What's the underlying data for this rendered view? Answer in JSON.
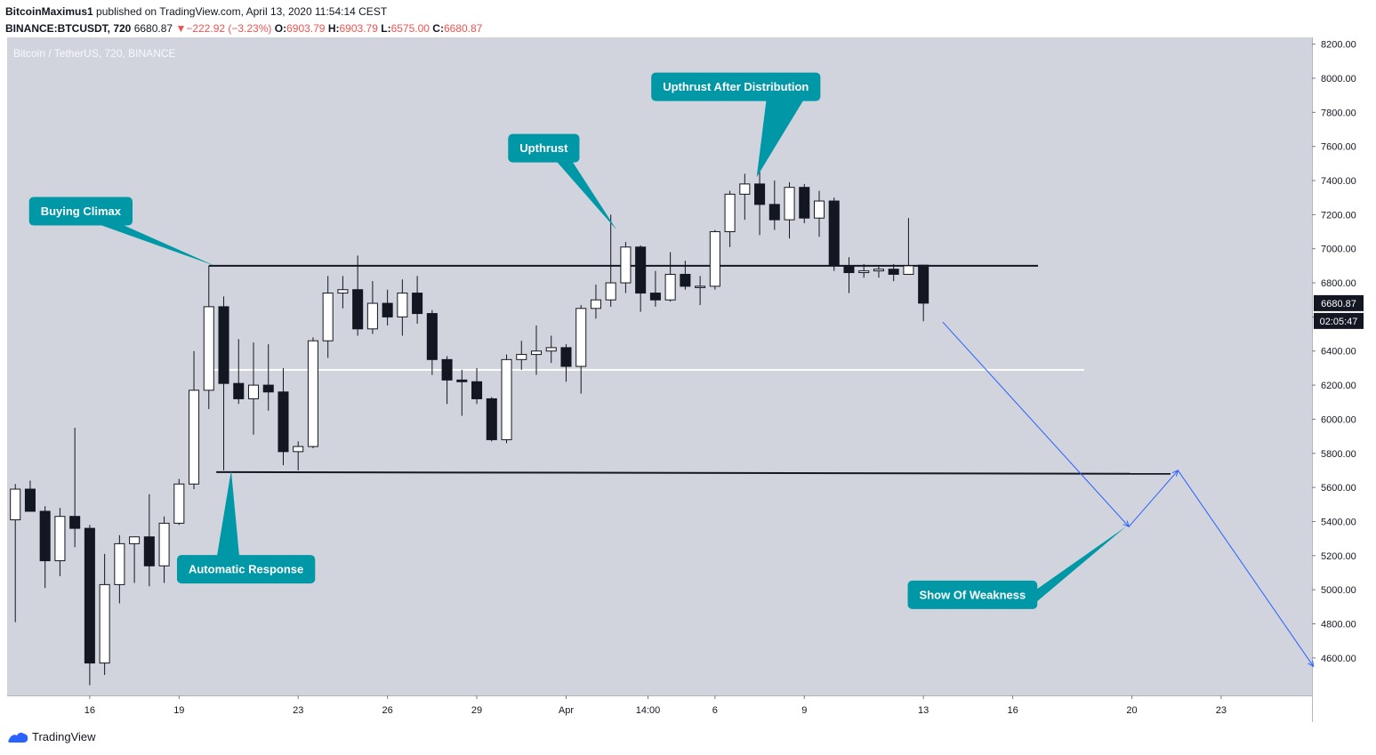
{
  "header": {
    "author": "BitcoinMaximus1",
    "published": "published on TradingView.com, April 13, 2020 11:54:14 CEST",
    "symbol": "BINANCE:BTCUSDT, 720",
    "last": "6680.87",
    "change": "−222.92 (−3.23%)",
    "o_label": "O:",
    "o": "6903.79",
    "h_label": "H:",
    "h": "6903.79",
    "l_label": "L:",
    "l": "6575.00",
    "c_label": "C:",
    "c": "6680.87"
  },
  "footer": {
    "brand": "TradingView"
  },
  "colors": {
    "plot_bg": "#d1d4dc",
    "bull_body": "#ffffff",
    "bear_body": "#131722",
    "callout": "#0097a7",
    "projection": "#2962ff",
    "last_price_bg": "#131722"
  },
  "chart_data": {
    "type": "candlestick",
    "title": "Bitcoin / TetherUS, 720, BINANCE",
    "y_range": [
      4380,
      8240
    ],
    "x_range": [
      -0.55,
      87.1
    ],
    "y_ticks": [
      4600,
      4800,
      5000,
      5200,
      5400,
      5600,
      5800,
      6000,
      6200,
      6400,
      6600,
      6800,
      7000,
      7200,
      7400,
      7600,
      7800,
      8000,
      8200
    ],
    "y_tick_labels": [
      "4600.00",
      "4800.00",
      "5000.00",
      "5200.00",
      "5400.00",
      "5600.00",
      "5800.00",
      "6000.00",
      "6200.00",
      "6400.00",
      "6600.00",
      "6800.00",
      "7000.00",
      "7200.00",
      "7400.00",
      "7600.00",
      "7800.00",
      "8000.00",
      "8200.00"
    ],
    "x_ticks": [
      {
        "i": 5,
        "label": "16"
      },
      {
        "i": 11,
        "label": "19"
      },
      {
        "i": 19,
        "label": "23"
      },
      {
        "i": 25,
        "label": "26"
      },
      {
        "i": 31,
        "label": "29"
      },
      {
        "i": 37,
        "label": "Apr"
      },
      {
        "i": 42.5,
        "label": "14:00"
      },
      {
        "i": 47,
        "label": "6"
      },
      {
        "i": 53,
        "label": "9"
      },
      {
        "i": 61,
        "label": "13"
      },
      {
        "i": 67,
        "label": "16"
      },
      {
        "i": 75,
        "label": "20"
      },
      {
        "i": 81,
        "label": "23"
      }
    ],
    "candles": [
      {
        "o": 5410,
        "h": 5620,
        "l": 4810,
        "c": 5590
      },
      {
        "o": 5590,
        "h": 5640,
        "l": 5490,
        "c": 5460
      },
      {
        "o": 5460,
        "h": 5490,
        "l": 5010,
        "c": 5170
      },
      {
        "o": 5170,
        "h": 5480,
        "l": 5080,
        "c": 5430
      },
      {
        "o": 5430,
        "h": 5950,
        "l": 5250,
        "c": 5360
      },
      {
        "o": 5360,
        "h": 5380,
        "l": 4440,
        "c": 4570
      },
      {
        "o": 4570,
        "h": 5210,
        "l": 4500,
        "c": 5030
      },
      {
        "o": 5030,
        "h": 5320,
        "l": 4920,
        "c": 5270
      },
      {
        "o": 5270,
        "h": 5310,
        "l": 5040,
        "c": 5310
      },
      {
        "o": 5310,
        "h": 5560,
        "l": 5020,
        "c": 5140
      },
      {
        "o": 5140,
        "h": 5430,
        "l": 5040,
        "c": 5390
      },
      {
        "o": 5390,
        "h": 5650,
        "l": 5380,
        "c": 5620
      },
      {
        "o": 5620,
        "h": 6400,
        "l": 5590,
        "c": 6170
      },
      {
        "o": 6170,
        "h": 6900,
        "l": 6060,
        "c": 6660
      },
      {
        "o": 6660,
        "h": 6720,
        "l": 5700,
        "c": 6210
      },
      {
        "o": 6210,
        "h": 6470,
        "l": 6090,
        "c": 6120
      },
      {
        "o": 6120,
        "h": 6450,
        "l": 5910,
        "c": 6200
      },
      {
        "o": 6200,
        "h": 6440,
        "l": 6050,
        "c": 6160
      },
      {
        "o": 6160,
        "h": 6300,
        "l": 5730,
        "c": 5810
      },
      {
        "o": 5810,
        "h": 5870,
        "l": 5700,
        "c": 5840
      },
      {
        "o": 5840,
        "h": 6480,
        "l": 5830,
        "c": 6460
      },
      {
        "o": 6460,
        "h": 6840,
        "l": 6360,
        "c": 6740
      },
      {
        "o": 6740,
        "h": 6840,
        "l": 6650,
        "c": 6760
      },
      {
        "o": 6760,
        "h": 6960,
        "l": 6490,
        "c": 6530
      },
      {
        "o": 6530,
        "h": 6810,
        "l": 6500,
        "c": 6680
      },
      {
        "o": 6680,
        "h": 6760,
        "l": 6550,
        "c": 6600
      },
      {
        "o": 6600,
        "h": 6820,
        "l": 6490,
        "c": 6740
      },
      {
        "o": 6740,
        "h": 6840,
        "l": 6560,
        "c": 6620
      },
      {
        "o": 6620,
        "h": 6640,
        "l": 6260,
        "c": 6350
      },
      {
        "o": 6350,
        "h": 6370,
        "l": 6090,
        "c": 6230
      },
      {
        "o": 6230,
        "h": 6290,
        "l": 6020,
        "c": 6220
      },
      {
        "o": 6220,
        "h": 6300,
        "l": 6090,
        "c": 6120
      },
      {
        "o": 6120,
        "h": 6130,
        "l": 5870,
        "c": 5880
      },
      {
        "o": 5880,
        "h": 6380,
        "l": 5860,
        "c": 6350
      },
      {
        "o": 6350,
        "h": 6460,
        "l": 6290,
        "c": 6380
      },
      {
        "o": 6380,
        "h": 6550,
        "l": 6260,
        "c": 6400
      },
      {
        "o": 6400,
        "h": 6490,
        "l": 6330,
        "c": 6420
      },
      {
        "o": 6420,
        "h": 6440,
        "l": 6220,
        "c": 6310
      },
      {
        "o": 6310,
        "h": 6670,
        "l": 6150,
        "c": 6650
      },
      {
        "o": 6650,
        "h": 6790,
        "l": 6590,
        "c": 6700
      },
      {
        "o": 6700,
        "h": 7200,
        "l": 6660,
        "c": 6800
      },
      {
        "o": 6800,
        "h": 7040,
        "l": 6740,
        "c": 7010
      },
      {
        "o": 7010,
        "h": 7020,
        "l": 6630,
        "c": 6740
      },
      {
        "o": 6740,
        "h": 6870,
        "l": 6660,
        "c": 6700
      },
      {
        "o": 6700,
        "h": 6980,
        "l": 6690,
        "c": 6850
      },
      {
        "o": 6850,
        "h": 6930,
        "l": 6760,
        "c": 6780
      },
      {
        "o": 6780,
        "h": 6840,
        "l": 6670,
        "c": 6780
      },
      {
        "o": 6780,
        "h": 7110,
        "l": 6760,
        "c": 7100
      },
      {
        "o": 7100,
        "h": 7340,
        "l": 7010,
        "c": 7320
      },
      {
        "o": 7320,
        "h": 7440,
        "l": 7170,
        "c": 7380
      },
      {
        "o": 7380,
        "h": 7460,
        "l": 7080,
        "c": 7260
      },
      {
        "o": 7260,
        "h": 7400,
        "l": 7110,
        "c": 7170
      },
      {
        "o": 7170,
        "h": 7390,
        "l": 7060,
        "c": 7360
      },
      {
        "o": 7360,
        "h": 7380,
        "l": 7150,
        "c": 7180
      },
      {
        "o": 7180,
        "h": 7340,
        "l": 7070,
        "c": 7280
      },
      {
        "o": 7280,
        "h": 7300,
        "l": 6870,
        "c": 6900
      },
      {
        "o": 6900,
        "h": 6950,
        "l": 6740,
        "c": 6860
      },
      {
        "o": 6860,
        "h": 6910,
        "l": 6830,
        "c": 6870
      },
      {
        "o": 6870,
        "h": 6900,
        "l": 6830,
        "c": 6880
      },
      {
        "o": 6880,
        "h": 6910,
        "l": 6810,
        "c": 6850
      },
      {
        "o": 6850,
        "h": 7180,
        "l": 6850,
        "c": 6900
      },
      {
        "o": 6903.79,
        "h": 6903.79,
        "l": 6575,
        "c": 6680.87
      }
    ],
    "hlines": [
      {
        "name": "upper-resistance-line",
        "y": 6900,
        "i1": 13,
        "i2": 68.7,
        "color": "#131722"
      },
      {
        "name": "mid-level-line",
        "y": 6290,
        "i1": 13,
        "i2": 71.8,
        "color": "#ffffff"
      },
      {
        "name": "support-line",
        "y1": 5690,
        "y2": 5680,
        "i1": 13.5,
        "i2": 77.6,
        "color": "#131722"
      }
    ],
    "projection": {
      "points": [
        {
          "i": 62.3,
          "y": 6570
        },
        {
          "i": 74.8,
          "y": 5370
        },
        {
          "i": 78.1,
          "y": 5700
        },
        {
          "i": 87.2,
          "y": 4550
        }
      ]
    },
    "callouts": [
      {
        "name": "callout-buying-climax",
        "label": "Buying Climax",
        "bi": 4.4,
        "by": 7220,
        "tip_i": 13.4,
        "tip_y": 6900,
        "side": "bottom"
      },
      {
        "name": "callout-automatic-response",
        "label": "Automatic Response",
        "bi": 15.5,
        "by": 5120,
        "tip_i": 14.5,
        "tip_y": 5700,
        "side": "top"
      },
      {
        "name": "callout-upthrust",
        "label": "Upthrust",
        "bi": 35.5,
        "by": 7590,
        "tip_i": 40.4,
        "tip_y": 7110,
        "side": "bottom"
      },
      {
        "name": "callout-upthrust-after-distribution",
        "label": "Upthrust After Distribution",
        "bi": 48.4,
        "by": 7950,
        "tip_i": 49.8,
        "tip_y": 7420,
        "side": "bottom"
      },
      {
        "name": "callout-show-of-weakness",
        "label": "Show Of Weakness",
        "bi": 64.3,
        "by": 4970,
        "tip_i": 74.6,
        "tip_y": 5370,
        "side": "right"
      }
    ],
    "last_price": {
      "value": 6680.87,
      "label": "6680.87",
      "countdown": "02:05:47"
    }
  }
}
